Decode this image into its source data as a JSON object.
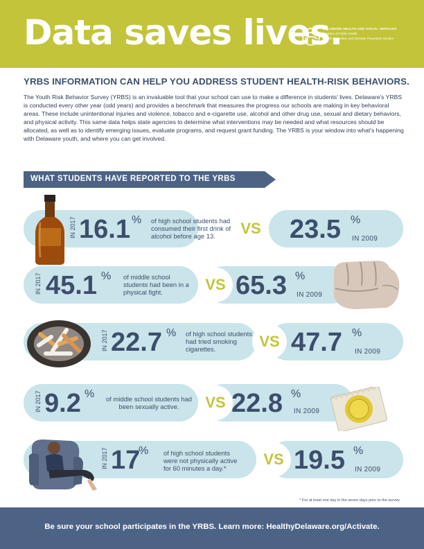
{
  "header": {
    "title": "Data saves lives.",
    "logo_line1": "DELAWARE HEALTH AND SOCIAL SERVICES",
    "logo_line2": "Division of Public Health",
    "logo_line3": "Health Promotion and Disease Prevention Section"
  },
  "intro": {
    "heading": "YRBS INFORMATION CAN HELP YOU ADDRESS STUDENT HEALTH-RISK BEHAVIORS.",
    "body": "The Youth Risk Behavior Survey (YRBS) is an invaluable tool that your school can use to make a difference in students' lives. Delaware's YRBS is conducted every other year (odd years) and provides a benchmark that measures the progress our schools are making in key behavioral areas. These include unintentional injuries and violence, tobacco and e-cigarette use, alcohol and other drug use, sexual and dietary behaviors, and physical activity. This same data helps state agencies to determine what interventions may be needed and what resources should be allocated, as well as to identify emerging issues, evaluate programs, and request grant funding. The YRBS is your window into what's happening with Delaware youth, and where you can get involved."
  },
  "section_title": "WHAT STUDENTS HAVE REPORTED TO THE YRBS",
  "stats": [
    {
      "year_label": "IN 2017",
      "value": "16.1",
      "unit": "%",
      "description": "of high school students had consumed their first drink of alcohol before age 13.",
      "vs": "VS",
      "compare_value": "23.5",
      "compare_unit": "%",
      "compare_year": "IN 2009",
      "icon": "whiskey-bottle-icon"
    },
    {
      "year_label": "IN 2017",
      "value": "45.1",
      "unit": "%",
      "description": "of middle school students had been in a physical fight.",
      "vs": "VS",
      "compare_value": "65.3",
      "compare_unit": "%",
      "compare_year": "IN 2009",
      "icon": "fist-icon"
    },
    {
      "year_label": "IN 2017",
      "value": "22.7",
      "unit": "%",
      "description": "of high school students had tried smoking cigarettes.",
      "vs": "VS",
      "compare_value": "47.7",
      "compare_unit": "%",
      "compare_year": "IN 2009",
      "icon": "ashtray-icon"
    },
    {
      "year_label": "IN 2017",
      "value": "9.2",
      "unit": "%",
      "description": "of middle school students had been sexually active.",
      "vs": "VS",
      "compare_value": "22.8",
      "compare_unit": "%",
      "compare_year": "IN 2009",
      "icon": "condom-packet-icon"
    },
    {
      "year_label": "IN 2017",
      "value": "17",
      "unit": "%",
      "description": "of high school students were not physically active for 60 minutes a day.*",
      "vs": "VS",
      "compare_value": "19.5",
      "compare_unit": "%",
      "compare_year": "IN 2009",
      "icon": "person-in-armchair-icon"
    }
  ],
  "footnote": "* For at least one day in the seven days prior to the survey.",
  "footer": "Be sure your school participates in the YRBS. Learn more: HealthyDelaware.org/Activate."
}
